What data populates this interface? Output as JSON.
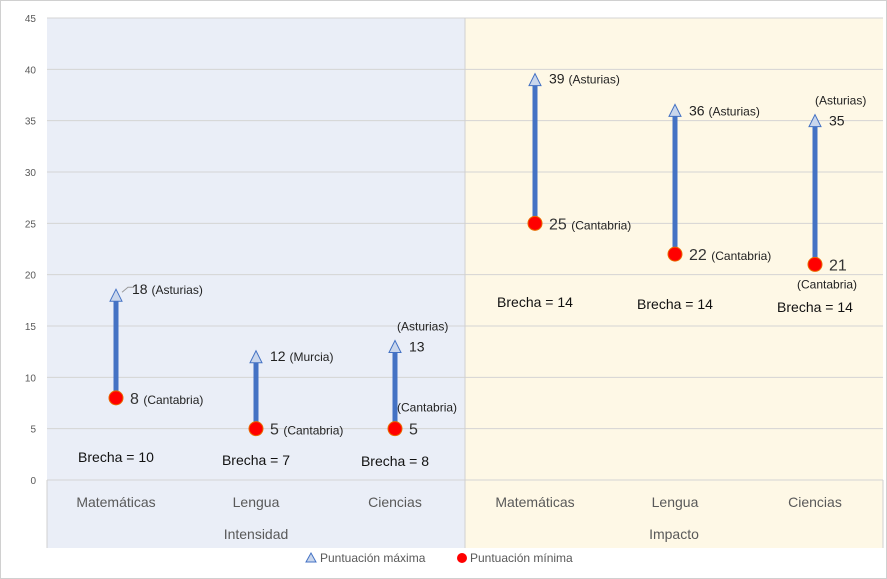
{
  "chart_data": {
    "type": "scatter",
    "subtype": "dumbbell",
    "title": "",
    "xlabel": "",
    "ylabel": "",
    "ylim": [
      0,
      45
    ],
    "yticks": [
      0,
      5,
      10,
      15,
      20,
      25,
      30,
      35,
      40,
      45
    ],
    "grid": true,
    "legend_position": "bottom",
    "groups": [
      {
        "name": "Intensidad",
        "background": "#EAEEF7",
        "categories": [
          "Matemáticas",
          "Lengua",
          "Ciencias"
        ]
      },
      {
        "name": "Impacto",
        "background": "#FEF8E6",
        "categories": [
          "Matemáticas",
          "Lengua",
          "Ciencias"
        ]
      }
    ],
    "categories": [
      "Matemáticas",
      "Lengua",
      "Ciencias",
      "Matemáticas",
      "Lengua",
      "Ciencias"
    ],
    "series": [
      {
        "name": "Puntuación máxima",
        "marker": "triangle",
        "color": "#C9D6EC",
        "values": [
          18,
          12,
          13,
          39,
          36,
          35
        ],
        "regions": [
          "(Asturias)",
          "(Murcia)",
          "(Asturias)",
          "(Asturias)",
          "(Asturias)",
          "(Asturias)"
        ]
      },
      {
        "name": "Puntuación mínima",
        "marker": "circle",
        "color": "#FF0000",
        "values": [
          8,
          5,
          5,
          25,
          22,
          21
        ],
        "regions": [
          "(Cantabria)",
          "(Cantabria)",
          "(Cantabria)",
          "(Cantabria)",
          "(Cantabria)",
          "(Cantabria)"
        ]
      }
    ],
    "connector_color": "#4472C4",
    "gap_labels": [
      "Brecha = 10",
      "Brecha = 7",
      "Brecha = 8",
      "Brecha = 14",
      "Brecha = 14",
      "Brecha = 14"
    ]
  }
}
